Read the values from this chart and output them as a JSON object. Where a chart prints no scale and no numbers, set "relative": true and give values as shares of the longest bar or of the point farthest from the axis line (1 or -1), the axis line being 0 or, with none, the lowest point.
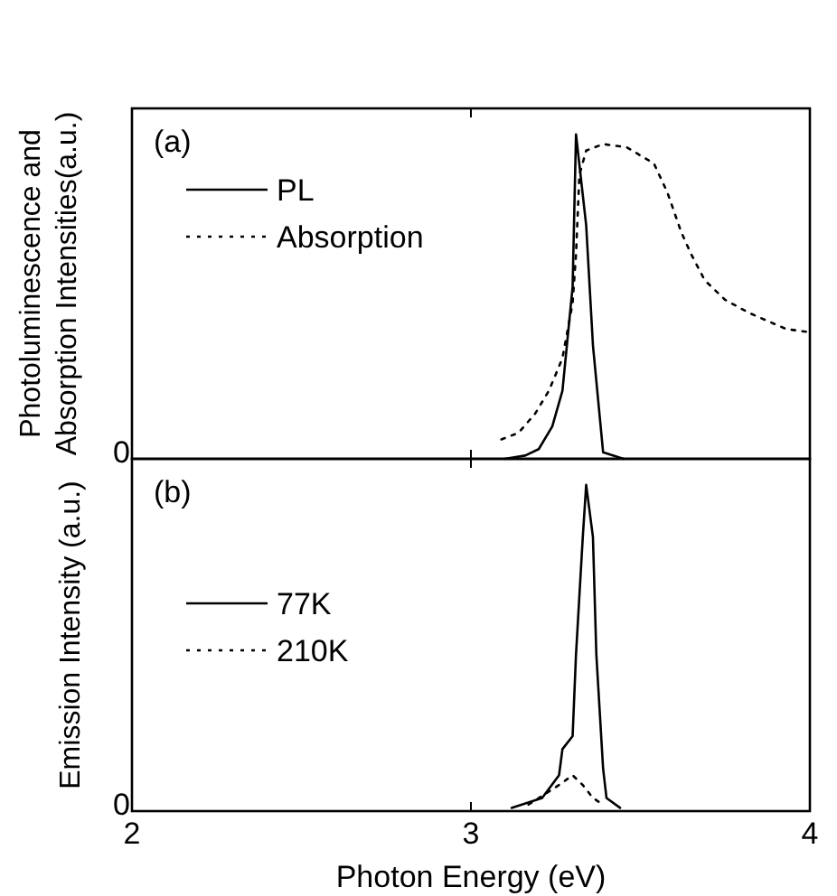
{
  "chart_data": [
    {
      "type": "line",
      "title": "(a)",
      "ylabel": "Photoluminescence and\nAbsorption Intensities(a.u.)",
      "relative": true,
      "xlim": [
        2,
        4
      ],
      "xticks": [
        2,
        3,
        4
      ],
      "tick_labels": false,
      "legend": "top left",
      "annotations": [
        "0"
      ],
      "series": [
        {
          "name": "PL",
          "color": "#000000",
          "line_style": "solid",
          "x": [
            3.1,
            3.16,
            3.2,
            3.24,
            3.27,
            3.3,
            3.31,
            3.34,
            3.36,
            3.39,
            3.45
          ],
          "values": [
            0,
            0.01,
            0.03,
            0.1,
            0.21,
            0.53,
            1,
            0.72,
            0.35,
            0.02,
            0
          ]
        },
        {
          "name": "Absorption",
          "color": "#000000",
          "line_style": "dotted",
          "x": [
            3.09,
            3.14,
            3.19,
            3.23,
            3.27,
            3.3,
            3.31,
            3.32,
            3.34,
            3.39,
            3.46,
            3.54,
            3.58,
            3.62,
            3.65,
            3.69,
            3.75,
            3.82,
            3.93,
            4.0
          ],
          "values": [
            0.06,
            0.08,
            0.14,
            0.21,
            0.31,
            0.48,
            0.63,
            0.875,
            0.95,
            0.97,
            0.96,
            0.91,
            0.82,
            0.7,
            0.63,
            0.55,
            0.49,
            0.45,
            0.4,
            0.39
          ]
        }
      ]
    },
    {
      "type": "line",
      "title": "(b)",
      "xlabel": "Photon Energy  (eV)",
      "ylabel": "Emission Intensity (a.u.)",
      "relative": true,
      "xlim": [
        2,
        4
      ],
      "xticks": [
        2,
        3,
        4
      ],
      "tick_labels": "x",
      "legend": "left",
      "annotations": [
        "0"
      ],
      "series": [
        {
          "name": "77K",
          "color": "#000000",
          "line_style": "solid",
          "x": [
            3.12,
            3.21,
            3.26,
            3.27,
            3.3,
            3.31,
            3.33,
            3.34,
            3.36,
            3.37,
            3.39,
            3.4,
            3.44
          ],
          "values": [
            0.01,
            0.04,
            0.11,
            0.19,
            0.23,
            0.48,
            0.84,
            1,
            0.84,
            0.48,
            0.13,
            0.04,
            0.01
          ]
        },
        {
          "name": "210K",
          "color": "#000000",
          "line_style": "dotted",
          "x": [
            3.17,
            3.26,
            3.3,
            3.33,
            3.36,
            3.39
          ],
          "values": [
            0.02,
            0.08,
            0.11,
            0.08,
            0.04,
            0.02
          ]
        }
      ]
    }
  ]
}
